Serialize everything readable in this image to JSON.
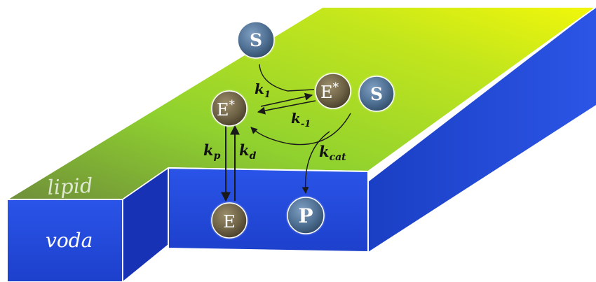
{
  "labels": {
    "lipid": "lipid",
    "voda": "voda",
    "substrate": "S",
    "enzyme_active": "E",
    "enzyme_star": "*",
    "enzyme": "E",
    "product": "P"
  },
  "rates": {
    "k1_base": "k",
    "k1_sub": "1",
    "km1_base": "k",
    "km1_sub": "-1",
    "kp_base": "k",
    "kp_sub": "p",
    "kd_base": "k",
    "kd_sub": "d",
    "kcat_base": "k",
    "kcat_sub": "cat"
  },
  "colors": {
    "membrane_green": "#8fd12f",
    "membrane_yellow": "#f2f70a",
    "water_blue": "#2349d6",
    "dark_blue": "#1530a8",
    "sphere_blue": "#4f7093",
    "sphere_brown": "#6e6246"
  }
}
